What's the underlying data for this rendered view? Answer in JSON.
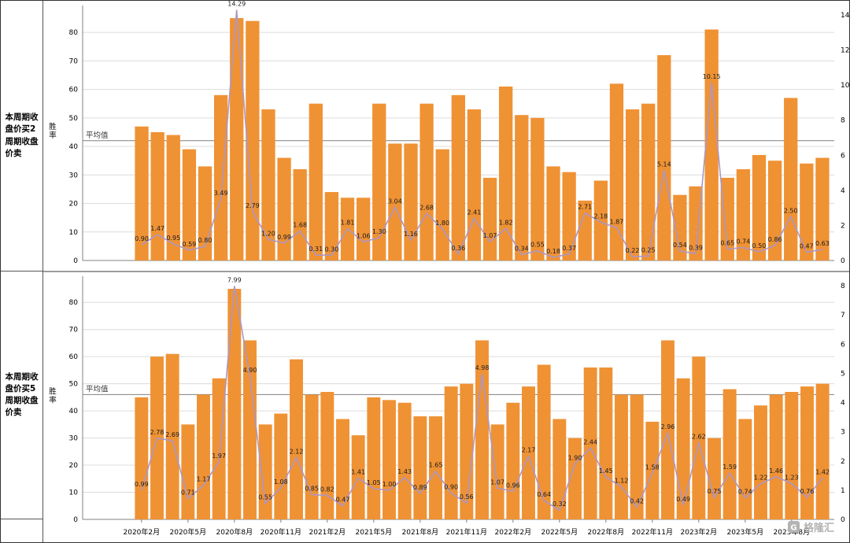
{
  "colors": {
    "bar": "#EF9234",
    "line": "#AB97C6",
    "avg_line": "#808080",
    "grid": "#dcdcdc",
    "axis": "#808080",
    "separator": "#3a3a3a",
    "label_text": "#1a1a1a",
    "watermark": "#b3b3b3"
  },
  "x_axis": {
    "tick_labels": [
      "2020年2月",
      "2020年5月",
      "2020年8月",
      "2020年11月",
      "2021年2月",
      "2021年5月",
      "2021年8月",
      "2021年11月",
      "2022年2月",
      "2022年5月",
      "2022年8月",
      "2022年11月",
      "2023年2月",
      "2023年5月",
      "2023年8月"
    ],
    "tick_step": 3,
    "first_tick_index": 0
  },
  "watermark": {
    "text": "格隆汇"
  },
  "chart_data": [
    {
      "panel": "top",
      "type": "bar+line",
      "row_label": "本周期收盘价买2周期收盘价卖",
      "ylabel_left": "胜率",
      "left_ticks": [
        0,
        10,
        20,
        30,
        40,
        50,
        60,
        70,
        80
      ],
      "right_ticks": [
        0,
        2,
        4,
        6,
        8,
        10,
        12,
        14
      ],
      "avg_label": "平均值",
      "avg_value_left_axis": 42,
      "bars_left_axis": [
        47,
        45,
        44,
        39,
        33,
        58,
        85,
        84,
        53,
        36,
        32,
        55,
        24,
        22,
        22,
        55,
        41,
        41,
        55,
        39,
        58,
        53,
        29,
        61,
        51,
        50,
        33,
        31,
        21,
        28,
        62,
        53,
        55,
        72,
        23,
        26,
        81,
        29,
        32,
        37,
        35,
        57,
        34,
        36
      ],
      "line_right_axis": [
        0.9,
        1.47,
        0.95,
        0.59,
        0.8,
        3.49,
        14.29,
        2.79,
        1.2,
        0.99,
        1.68,
        0.31,
        0.3,
        1.81,
        1.06,
        1.3,
        3.04,
        1.16,
        2.68,
        1.8,
        0.36,
        2.41,
        1.07,
        1.82,
        0.34,
        0.55,
        0.18,
        0.37,
        2.71,
        2.18,
        1.87,
        0.22,
        0.25,
        5.14,
        0.54,
        0.39,
        10.15,
        0.65,
        0.74,
        0.5,
        0.86,
        2.5,
        0.47,
        0.63
      ]
    },
    {
      "panel": "bottom",
      "type": "bar+line",
      "row_label": "本周期收盘价买5周期收盘价卖",
      "ylabel_left": "胜率",
      "left_ticks": [
        0,
        10,
        20,
        30,
        40,
        50,
        60,
        70,
        80
      ],
      "right_ticks": [
        0,
        1,
        2,
        3,
        4,
        5,
        6,
        7,
        8
      ],
      "avg_label": "平均值",
      "avg_value_left_axis": 46,
      "bars_left_axis": [
        45,
        60,
        61,
        35,
        46,
        52,
        85,
        66,
        35,
        39,
        59,
        46,
        47,
        37,
        31,
        45,
        44,
        43,
        38,
        38,
        49,
        50,
        66,
        35,
        43,
        49,
        57,
        37,
        30,
        56,
        56,
        46,
        46,
        36,
        66,
        52,
        60,
        30,
        48,
        37,
        42,
        46,
        47,
        49,
        50
      ],
      "line_right_axis": [
        0.99,
        2.78,
        2.69,
        0.71,
        1.17,
        1.97,
        7.99,
        4.9,
        0.55,
        1.08,
        2.12,
        0.85,
        0.82,
        0.47,
        1.41,
        1.05,
        1.0,
        1.43,
        0.89,
        1.65,
        0.9,
        0.56,
        4.98,
        1.07,
        0.96,
        2.17,
        0.64,
        0.32,
        1.9,
        2.44,
        1.45,
        1.12,
        0.42,
        1.58,
        2.96,
        0.49,
        2.62,
        0.75,
        1.59,
        0.74,
        1.22,
        1.46,
        1.23,
        0.76,
        1.42
      ]
    }
  ]
}
